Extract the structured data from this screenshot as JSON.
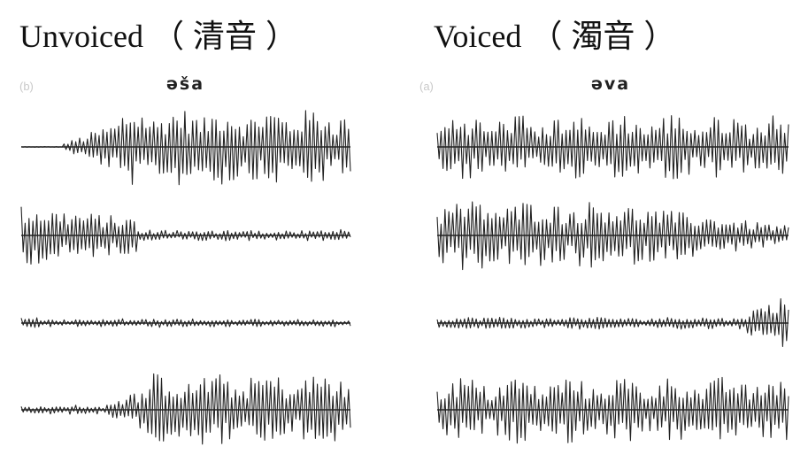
{
  "left_panel": {
    "heading": "Unvoiced",
    "heading_cjk": "清音",
    "paren_open": "（",
    "paren_close": "）",
    "title": "əša",
    "label": "(b)",
    "line_color": "#222222",
    "traces": [
      {
        "name": "trace-1",
        "profile": "silence-then-high"
      },
      {
        "name": "trace-2",
        "profile": "decay"
      },
      {
        "name": "trace-3",
        "profile": "noise"
      },
      {
        "name": "trace-4",
        "profile": "rise"
      }
    ]
  },
  "right_panel": {
    "heading": "Voiced",
    "heading_cjk": "濁音",
    "paren_open": "（",
    "paren_close": "）",
    "title": "əva",
    "label": "(a)",
    "line_color": "#222222",
    "traces": [
      {
        "name": "trace-1",
        "profile": "high"
      },
      {
        "name": "trace-2",
        "profile": "high-decay"
      },
      {
        "name": "trace-3",
        "profile": "low-then-spike"
      },
      {
        "name": "trace-4",
        "profile": "high"
      }
    ]
  }
}
